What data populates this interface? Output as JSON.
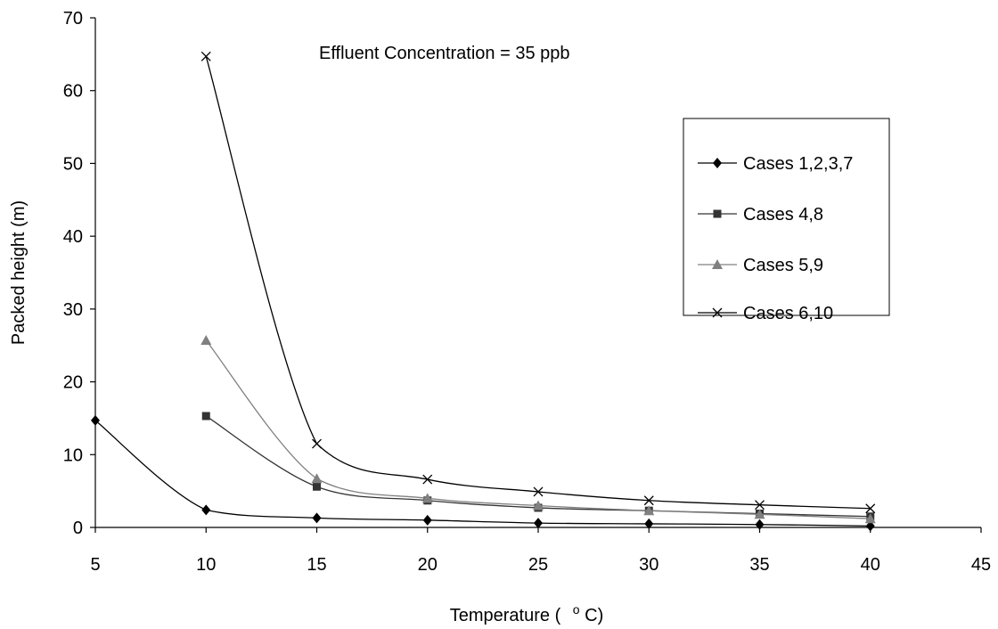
{
  "chart_data": {
    "type": "line",
    "title": "",
    "annotation": "Effluent Concentration = 35 ppb",
    "xlabel": "Temperature (",
    "xlabel_unit": "C)",
    "xlabel_superscript": "o",
    "ylabel": "Packed height (m)",
    "xlim": [
      5,
      45
    ],
    "ylim": [
      0,
      70
    ],
    "x_ticks": [
      5,
      10,
      15,
      20,
      25,
      30,
      35,
      40,
      45
    ],
    "y_ticks": [
      0,
      10,
      20,
      30,
      40,
      50,
      60,
      70
    ],
    "grid": false,
    "legend_position": "right",
    "line_style": "smoothed",
    "series": [
      {
        "name": "Cases 1,2,3,7",
        "marker": "diamond",
        "color": "#000000",
        "x": [
          5,
          10,
          15,
          20,
          25,
          30,
          35,
          40
        ],
        "y": [
          14.7,
          2.4,
          1.3,
          1.0,
          0.6,
          0.5,
          0.4,
          0.2
        ]
      },
      {
        "name": "Cases 4,8",
        "marker": "square",
        "color": "#333333",
        "x": [
          10,
          15,
          20,
          25,
          30,
          35,
          40
        ],
        "y": [
          15.3,
          5.6,
          3.7,
          2.7,
          2.3,
          1.9,
          1.5
        ]
      },
      {
        "name": "Cases 5,9",
        "marker": "triangle",
        "color": "#808080",
        "x": [
          10,
          15,
          20,
          25,
          30,
          35,
          40
        ],
        "y": [
          25.7,
          6.7,
          4.0,
          3.0,
          2.3,
          1.8,
          1.2
        ]
      },
      {
        "name": "Cases 6,10",
        "marker": "x",
        "color": "#000000",
        "x": [
          10,
          15,
          20,
          25,
          30,
          35,
          40
        ],
        "y": [
          64.7,
          11.5,
          6.6,
          4.9,
          3.7,
          3.1,
          2.6
        ]
      }
    ]
  }
}
